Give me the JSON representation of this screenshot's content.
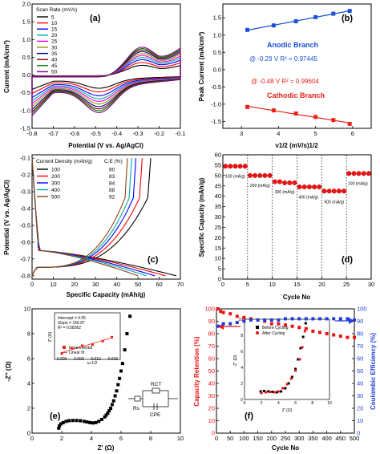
{
  "panels": {
    "a": {
      "tag": "(a)",
      "ylabel": "Current (mA/cm²)",
      "xlabel": "Potential (V vs. Ag/AgCl)",
      "legend_title": "Scan Rate (mV/s)"
    },
    "b": {
      "tag": "(b)",
      "ylabel": "Peak Current (mA/cm²)",
      "xlabel": "ν1/2 (mV/s)1/2",
      "anodic": "Anodic Branch",
      "anodic_fit": "@ -0.29 V R² = 0.97445",
      "cathodic": "Cathodic Branch",
      "cathodic_fit": "@ -0.48 V R² = 0.99604"
    },
    "c": {
      "tag": "(c)",
      "ylabel": "Potential (V vs. Ag/AgCl)",
      "xlabel": "Specific Capacity (mAh/g)",
      "legend_col1": "Current Density (mAh/g)",
      "legend_col2": "C.E (%)"
    },
    "d": {
      "tag": "(d)",
      "ylabel": "Specific Capacity (mAh/g)",
      "xlabel": "Cycle No"
    },
    "e": {
      "tag": "(e)",
      "ylabel": "-Z'' (Ω)",
      "xlabel": "Z' (Ω)",
      "inset_lines": [
        "Intercept = 4.55",
        "Slope = 156.87",
        "R² = 0.58362"
      ],
      "inset_legend": [
        "Experimental",
        "Linear fit"
      ],
      "inset_ylabel": "Z' (Ω)",
      "inset_xlabel": "ω-1/2",
      "circuit": {
        "rs": "Rs",
        "rct": "RCT",
        "cpe": "CPE"
      }
    },
    "f": {
      "tag": "(f)",
      "ylabel_left": "Capacity Retention (%)",
      "ylabel_right": "Coulombic Efficiency (%)",
      "xlabel": "Cycle No",
      "inset_legend": [
        "Before Cycling",
        "After Cycling"
      ],
      "inset_ylabel": "-Z'' (Ω)",
      "inset_xlabel": "Z' (Ω)"
    }
  },
  "chart_data": [
    {
      "type": "line",
      "panel": "a",
      "title": "",
      "xlabel": "Potential (V vs. Ag/AgCl)",
      "ylabel": "Current (mA/cm²)",
      "xlim": [
        -0.8,
        -0.1
      ],
      "ylim": [
        -1.5,
        2.0
      ],
      "x_ticks": [
        -0.8,
        -0.7,
        -0.6,
        -0.5,
        -0.4,
        -0.3,
        -0.2,
        -0.1
      ],
      "y_ticks": [
        -1.5,
        -1.0,
        -0.5,
        0.0,
        0.5,
        1.0,
        1.5,
        2.0
      ],
      "series": [
        {
          "name": "5",
          "color": "#000000",
          "scale": 0.35
        },
        {
          "name": "10",
          "color": "#ff0000",
          "scale": 0.45
        },
        {
          "name": "15",
          "color": "#0000ff",
          "scale": 0.55
        },
        {
          "name": "20",
          "color": "#00aaaa",
          "scale": 0.63
        },
        {
          "name": "25",
          "color": "#ff00ff",
          "scale": 0.7
        },
        {
          "name": "30",
          "color": "#999900",
          "scale": 0.77
        },
        {
          "name": "35",
          "color": "#000080",
          "scale": 0.84
        },
        {
          "name": "40",
          "color": "#800000",
          "scale": 0.9
        },
        {
          "name": "45",
          "color": "#008000",
          "scale": 0.95
        },
        {
          "name": "50",
          "color": "#800080",
          "scale": 1.0
        }
      ]
    },
    {
      "type": "scatter",
      "panel": "b",
      "xlabel": "ν1/2 (mV/s)1/2",
      "ylabel": "Peak Current (mA/cm²)",
      "xlim": [
        2.5,
        6.5
      ],
      "ylim": [
        -1.7,
        1.9
      ],
      "x_ticks": [
        3,
        4,
        5,
        6
      ],
      "y_ticks": [
        -1.5,
        -1.0,
        -0.5,
        0.0,
        0.5,
        1.0,
        1.5
      ],
      "series": [
        {
          "name": "Anodic Branch",
          "color": "#1a4fd6",
          "x": [
            3.16,
            3.87,
            4.47,
            5.0,
            5.48,
            5.92
          ],
          "y": [
            1.15,
            1.28,
            1.4,
            1.52,
            1.62,
            1.7
          ]
        },
        {
          "name": "Cathodic Branch",
          "color": "#e8231a",
          "x": [
            3.16,
            3.87,
            4.47,
            5.0,
            5.48,
            5.92
          ],
          "y": [
            -1.08,
            -1.18,
            -1.27,
            -1.37,
            -1.46,
            -1.57
          ]
        }
      ]
    },
    {
      "type": "line",
      "panel": "c",
      "xlabel": "Specific Capacity (mAh/g)",
      "ylabel": "Potential (V vs. Ag/AgCl)",
      "xlim": [
        0,
        70
      ],
      "ylim": [
        -0.82,
        -0.08
      ],
      "x_ticks": [
        0,
        10,
        20,
        30,
        40,
        50,
        60,
        70
      ],
      "y_ticks": [
        -0.8,
        -0.7,
        -0.6,
        -0.5,
        -0.4,
        -0.3,
        -0.2,
        -0.1
      ],
      "series": [
        {
          "name": "100",
          "ce": "80",
          "color": "#000000",
          "charge_end": 56,
          "discharge_end": 68
        },
        {
          "name": "200",
          "ce": "83",
          "color": "#ff0000",
          "charge_end": 52,
          "discharge_end": 63
        },
        {
          "name": "300",
          "ce": "84",
          "color": "#0000ff",
          "charge_end": 49,
          "discharge_end": 58
        },
        {
          "name": "400",
          "ce": "88",
          "color": "#00aaaa",
          "charge_end": 47,
          "discharge_end": 54
        },
        {
          "name": "500",
          "ce": "92",
          "color": "#8b4513",
          "charge_end": 45,
          "discharge_end": 50
        }
      ]
    },
    {
      "type": "scatter",
      "panel": "d",
      "xlabel": "Cycle No",
      "ylabel": "Specific Capacity (mAh/g)",
      "xlim": [
        0,
        30
      ],
      "ylim": [
        0,
        60
      ],
      "x_ticks": [
        0,
        5,
        10,
        15,
        20,
        25,
        30
      ],
      "y_ticks": [
        0,
        5,
        10,
        15,
        20,
        25,
        30,
        35,
        40,
        45,
        50,
        55,
        60
      ],
      "color": "#ee1111",
      "x": [
        1,
        2,
        3,
        4,
        5,
        6,
        7,
        8,
        9,
        10,
        11,
        12,
        13,
        14,
        15,
        16,
        17,
        18,
        19,
        20,
        21,
        22,
        23,
        24,
        25,
        26,
        27,
        28,
        29,
        30
      ],
      "y": [
        54.5,
        54.5,
        54.5,
        54.5,
        54.5,
        50,
        50,
        50,
        50,
        50,
        47,
        47,
        46.5,
        46.5,
        46.5,
        44.5,
        44.5,
        44.5,
        44.5,
        44.5,
        42.5,
        42.5,
        42.5,
        42.5,
        42.5,
        51,
        51,
        51,
        51,
        51
      ],
      "segment_labels": [
        {
          "text": "100 (mA/g)",
          "x": 0.5,
          "y": 49
        },
        {
          "text": "200 (mA/g)",
          "x": 5.5,
          "y": 44.5
        },
        {
          "text": "300 (mA/g)",
          "x": 10.5,
          "y": 41.5
        },
        {
          "text": "400 (mA/g)",
          "x": 15.3,
          "y": 39
        },
        {
          "text": "500 (mA/g)",
          "x": 20.5,
          "y": 36.5
        },
        {
          "text": "100 (mA/g)",
          "x": 25.3,
          "y": 45.5
        }
      ]
    },
    {
      "type": "scatter",
      "panel": "e",
      "xlabel": "Z' (Ω)",
      "ylabel": "-Z'' (Ω)",
      "xlim": [
        0,
        10
      ],
      "ylim": [
        0,
        10
      ],
      "x_ticks": [
        0,
        2,
        4,
        6,
        8,
        10
      ],
      "y_ticks": [
        0,
        2,
        4,
        6,
        8,
        10
      ],
      "x": [
        1.8,
        1.85,
        1.95,
        2.1,
        2.3,
        2.5,
        2.75,
        3.0,
        3.25,
        3.5,
        3.7,
        3.9,
        4.1,
        4.3,
        4.5,
        4.7,
        4.9,
        5.0,
        5.1,
        5.2,
        5.3,
        5.4,
        5.5,
        5.6,
        5.7,
        5.8,
        5.9,
        6.0,
        6.1,
        6.25,
        6.4,
        6.6
      ],
      "y": [
        0.4,
        0.6,
        0.75,
        0.85,
        0.95,
        1.0,
        1.02,
        1.02,
        1.0,
        0.95,
        0.9,
        0.85,
        0.82,
        0.85,
        0.95,
        1.1,
        1.3,
        1.45,
        1.6,
        1.8,
        2.0,
        2.3,
        2.6,
        3.0,
        3.4,
        3.9,
        4.4,
        5.0,
        5.6,
        6.7,
        8.0,
        9.4
      ],
      "inset": {
        "x_ticks": [
          0.006,
          0.009,
          0.012,
          0.015
        ],
        "xlim": [
          0.005,
          0.016
        ],
        "ylim": [
          5.5,
          6.8
        ],
        "x": [
          0.006,
          0.0078,
          0.0096,
          0.0114,
          0.0132,
          0.0148
        ],
        "y": [
          5.55,
          5.82,
          5.95,
          6.0,
          6.18,
          6.38
        ]
      }
    },
    {
      "type": "line",
      "panel": "f",
      "xlabel": "Cycle No",
      "ylabel": "Capacity Retention (%)",
      "xlim": [
        0,
        500
      ],
      "ylim": [
        0,
        100
      ],
      "ylim_right": [
        0,
        100
      ],
      "x_ticks": [
        0,
        50,
        100,
        150,
        200,
        250,
        300,
        350,
        400,
        450,
        500
      ],
      "y_ticks": [
        0,
        10,
        20,
        30,
        40,
        50,
        60,
        70,
        80,
        90,
        100
      ],
      "series": [
        {
          "name": "Capacity Retention",
          "color": "#ee1111",
          "x": [
            5,
            15,
            25,
            50,
            75,
            100,
            125,
            150,
            175,
            200,
            225,
            250,
            275,
            300,
            325,
            350,
            375,
            400,
            425,
            450,
            475,
            500
          ],
          "y": [
            100,
            98,
            97,
            96,
            94,
            93,
            92,
            91,
            90,
            88,
            88,
            87,
            86,
            85,
            84,
            82,
            81,
            80,
            79,
            78,
            77,
            77
          ]
        },
        {
          "name": "Coulombic Efficiency",
          "color": "#1f3ddb",
          "x": [
            5,
            25,
            50,
            75,
            100,
            125,
            150,
            175,
            200,
            225,
            250,
            275,
            300,
            325,
            350,
            375,
            400,
            425,
            450,
            475,
            500
          ],
          "y": [
            86,
            88,
            88,
            89,
            90,
            91,
            91,
            91,
            91,
            91,
            92,
            92,
            92,
            92,
            92,
            92,
            92,
            92,
            92,
            92,
            91
          ]
        }
      ],
      "inset": {
        "xlim": [
          0,
          10
        ],
        "ylim": [
          0,
          10
        ],
        "x_ticks": [
          0,
          2,
          4,
          6,
          8,
          10
        ],
        "y_ticks": [
          0,
          2,
          4,
          6,
          8,
          10
        ],
        "before": {
          "x": [
            1.9,
            2.3,
            2.8,
            3.3,
            3.8,
            4.3,
            4.8,
            5.2,
            5.6,
            6.0,
            6.3,
            6.6,
            6.9,
            7.2
          ],
          "y": [
            1.0,
            1.05,
            1.0,
            0.95,
            0.9,
            1.0,
            1.4,
            2.0,
            2.8,
            3.8,
            5.0,
            6.4,
            7.8,
            9.5
          ]
        },
        "after": {
          "x": [
            2.0,
            2.5,
            3.0,
            3.5,
            4.0,
            4.5,
            5.0,
            5.5,
            6.0,
            6.5,
            6.8,
            7.1
          ],
          "y": [
            0.8,
            0.9,
            0.95,
            0.9,
            1.0,
            1.4,
            1.9,
            2.6,
            3.6,
            5.0,
            6.5,
            8.5
          ]
        }
      }
    }
  ]
}
